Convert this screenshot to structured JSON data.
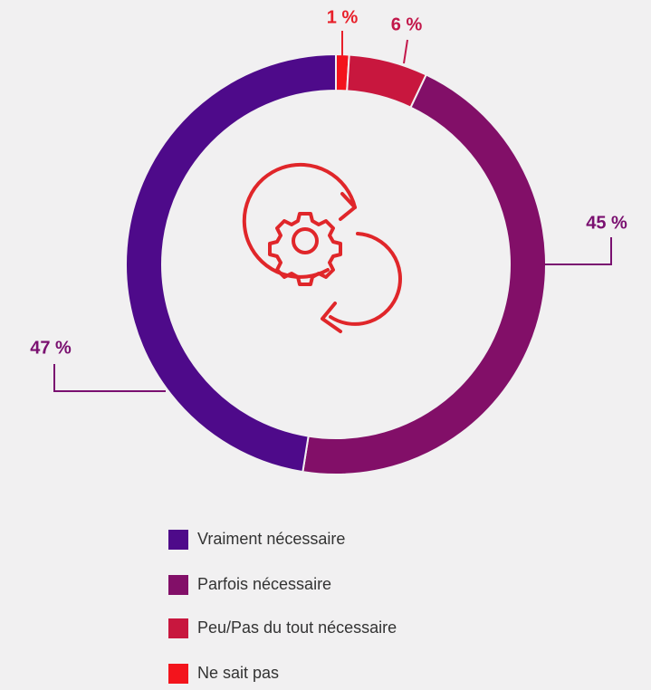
{
  "chart_data": {
    "type": "donut",
    "categories": [
      "Vraiment nécessaire",
      "Parfois nécessaire",
      "Peu/Pas du tout nécessaire",
      "Ne sait pas"
    ],
    "values": [
      47,
      45,
      6,
      1
    ],
    "value_labels": [
      "47 %",
      "45 %",
      "6 %",
      "1 %"
    ],
    "colors": [
      "#4e0a8a",
      "#820f68",
      "#c8173e",
      "#f3141c"
    ],
    "label_colors": [
      "#7a1070",
      "#7a1070",
      "#c2174a",
      "#e8202a"
    ]
  }
}
